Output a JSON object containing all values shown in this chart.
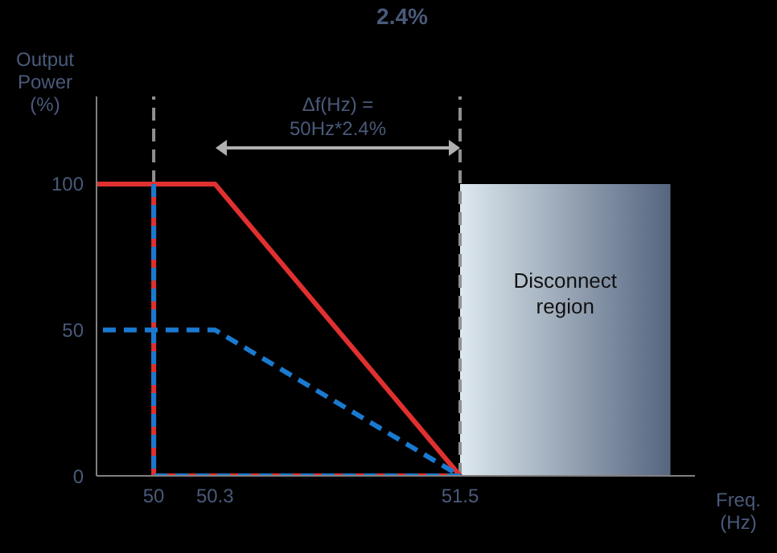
{
  "chart_data": {
    "type": "line",
    "title": "2.4%",
    "xlabel": "Freq.\n(Hz)",
    "ylabel": "Output\nPower\n(%)",
    "series": [
      {
        "color": "#e03030",
        "line_style": "solid",
        "x": [
          49.72,
          50.3,
          51.5,
          50,
          50
        ],
        "values": [
          100,
          100,
          0,
          0,
          100
        ]
      },
      {
        "color": "#1a7ad0",
        "line_style": "dashed",
        "x": [
          50,
          50,
          51.5,
          50.3,
          49.72
        ],
        "values": [
          100,
          0,
          0,
          50,
          50
        ]
      }
    ],
    "xlim": [
      49.72,
      52.65
    ],
    "xticks": [
      50,
      50.3,
      51.5
    ],
    "ylim": [
      0,
      130
    ],
    "yticks": [
      0,
      50,
      100
    ],
    "ref_lines": [
      {
        "axis": "x",
        "value": 50,
        "color": "#909090",
        "line_style": "dashed"
      },
      {
        "axis": "x",
        "value": 51.5,
        "color": "#909090",
        "line_style": "dashed"
      }
    ],
    "bands": [
      {
        "axis": "x",
        "from": 51.5,
        "to": 52.53,
        "label": "Disconnect\nregion",
        "color": "#55657f"
      }
    ],
    "annotations": [
      "Δf(Hz) =\n50Hz*2.4%"
    ],
    "marker": "none"
  }
}
